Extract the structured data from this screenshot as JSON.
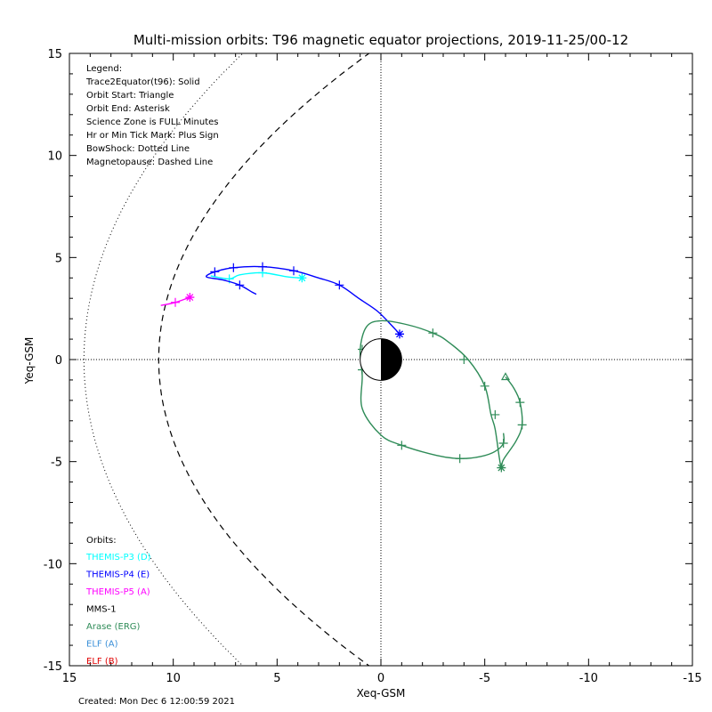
{
  "chart_data": {
    "type": "line",
    "title": "Multi-mission orbits: T96 magnetic equator projections, 2019-11-25/00-12",
    "xlabel": "Xeq-GSM",
    "ylabel": "Yeq-GSM",
    "xlim": [
      15,
      -15
    ],
    "ylim": [
      15,
      -15
    ],
    "x_ticks": [
      "15",
      "10",
      "5",
      "0",
      "-5",
      "-10",
      "-15"
    ],
    "y_ticks": [
      "-15",
      "-10",
      "-5",
      "0",
      "5",
      "10",
      "15"
    ],
    "legend": {
      "lines": [
        "Legend:",
        "Trace2Equator(t96): Solid",
        "Orbit Start: Triangle",
        "Orbit End: Asterisk",
        "Science Zone is FULL Minutes",
        "Hr or Min Tick Mark: Plus Sign",
        "BowShock: Dotted Line",
        "Magnetopause: Dashed Line"
      ],
      "placement": "top-left"
    },
    "orbits_label": "Orbits:",
    "series": [
      {
        "name": "THEMIS-P3 (D)",
        "color": "#00ffff",
        "points": [
          [
            3.8,
            4.0
          ],
          [
            4.5,
            4.05
          ],
          [
            5.7,
            4.25
          ],
          [
            6.8,
            4.15
          ],
          [
            7.3,
            3.95
          ],
          [
            8.2,
            4.1
          ]
        ],
        "ticks": [
          [
            5.7,
            4.25
          ],
          [
            7.3,
            3.95
          ]
        ],
        "start": null,
        "end": [
          3.8,
          4.0
        ]
      },
      {
        "name": "THEMIS-P4 (E)",
        "color": "#0000ff",
        "points": [
          [
            -0.9,
            1.25
          ],
          [
            -0.4,
            1.8
          ],
          [
            0.2,
            2.4
          ],
          [
            1,
            2.95
          ],
          [
            2.0,
            3.65
          ],
          [
            3.0,
            4.0
          ],
          [
            4.2,
            4.35
          ],
          [
            5.7,
            4.55
          ],
          [
            7.1,
            4.5
          ],
          [
            8.0,
            4.3
          ],
          [
            8.4,
            4.05
          ],
          [
            7.6,
            3.9
          ],
          [
            6.8,
            3.65
          ],
          [
            6.2,
            3.3
          ],
          [
            6.0,
            3.2
          ]
        ],
        "ticks": [
          [
            2.0,
            3.65
          ],
          [
            4.2,
            4.35
          ],
          [
            5.7,
            4.55
          ],
          [
            7.1,
            4.5
          ],
          [
            8.0,
            4.3
          ],
          [
            6.8,
            3.65
          ]
        ],
        "start": null,
        "end": [
          -0.9,
          1.25
        ]
      },
      {
        "name": "THEMIS-P5 (A)",
        "color": "#ff00ff",
        "points": [
          [
            10.6,
            2.65
          ],
          [
            9.9,
            2.8
          ],
          [
            9.2,
            3.05
          ]
        ],
        "ticks": [
          [
            9.9,
            2.8
          ]
        ],
        "start": null,
        "end": [
          9.2,
          3.05
        ]
      },
      {
        "name": "MMS-1",
        "color": "#000000",
        "points": [],
        "ticks": [],
        "start": null,
        "end": null
      },
      {
        "name": "Arase (ERG)",
        "color": "#2e8b57",
        "points": [
          [
            -6.0,
            -0.85
          ],
          [
            -6.4,
            -1.4
          ],
          [
            -6.7,
            -2.1
          ],
          [
            -6.8,
            -3.2
          ],
          [
            -6.5,
            -4.0
          ],
          [
            -5.9,
            -4.9
          ],
          [
            -5.8,
            -5.3
          ],
          [
            -5.7,
            -4.8
          ],
          [
            -5.5,
            -3.4
          ],
          [
            -5.3,
            -2.7
          ],
          [
            -5.0,
            -1.3
          ],
          [
            -4.2,
            0.0
          ],
          [
            -3.2,
            0.9
          ],
          [
            -2.5,
            1.3
          ],
          [
            -1.3,
            1.7
          ],
          [
            0.0,
            1.9
          ],
          [
            0.7,
            1.6
          ],
          [
            1.0,
            0.5
          ],
          [
            0.9,
            -0.8
          ],
          [
            0.9,
            -2.4
          ],
          [
            0.0,
            -3.7
          ],
          [
            -1.0,
            -4.2
          ],
          [
            -2.7,
            -4.7
          ],
          [
            -3.8,
            -4.85
          ],
          [
            -4.8,
            -4.75
          ],
          [
            -5.5,
            -4.5
          ],
          [
            -5.9,
            -4.1
          ],
          [
            -5.9,
            -3.6
          ]
        ],
        "ticks": [
          [
            -6.7,
            -2.1
          ],
          [
            -6.8,
            -3.2
          ],
          [
            -5.9,
            -4.1
          ],
          [
            -5.5,
            -2.7
          ],
          [
            -5.0,
            -1.3
          ],
          [
            -4.0,
            0.0
          ],
          [
            -2.5,
            1.3
          ],
          [
            0.9,
            0.5
          ],
          [
            0.9,
            -0.5
          ],
          [
            -1.0,
            -4.2
          ],
          [
            -3.8,
            -4.85
          ]
        ],
        "start": [
          -6.0,
          -0.85
        ],
        "end": [
          -5.8,
          -5.3
        ]
      },
      {
        "name": "ELF (A)",
        "color": "#3a8fd8",
        "points": [],
        "ticks": [],
        "start": null,
        "end": null
      },
      {
        "name": "ELF (B)",
        "color": "#e00000",
        "points": [],
        "ticks": [],
        "start": null,
        "end": null
      }
    ],
    "magnetopause": "dashed",
    "bowshock": "dotted",
    "grid": false,
    "footer": "Created: Mon Dec  6 12:00:59 2021"
  }
}
